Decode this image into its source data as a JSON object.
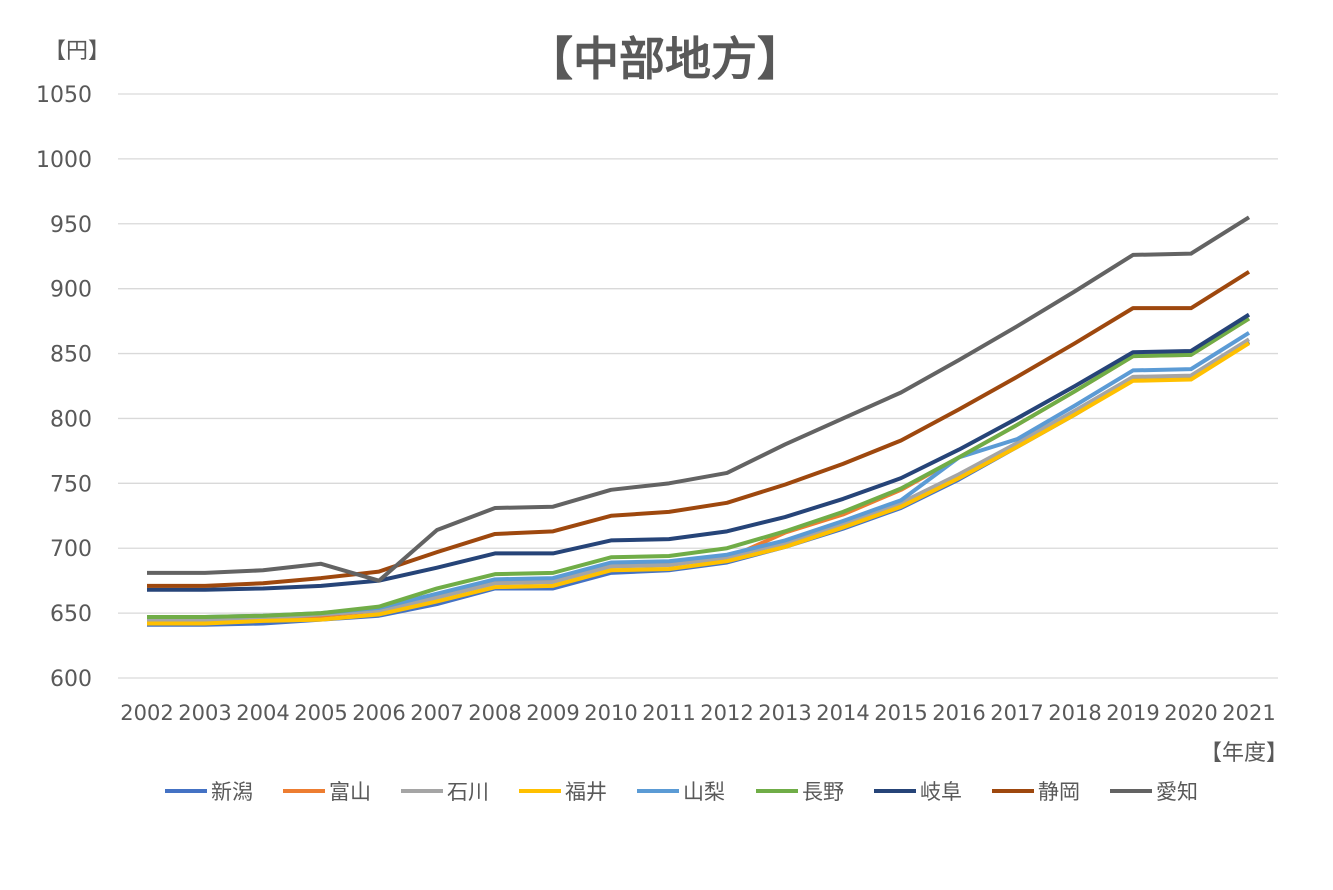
{
  "chart_data": {
    "type": "line",
    "title": "【中部地方】",
    "ylabel": "【円】",
    "xlabel": "【年度】",
    "ylim": [
      600,
      1050
    ],
    "yticks": [
      600,
      650,
      700,
      750,
      800,
      850,
      900,
      950,
      1000,
      1050
    ],
    "grid": true,
    "legend": "bottom",
    "categories": [
      "2002",
      "2003",
      "2004",
      "2005",
      "2006",
      "2007",
      "2008",
      "2009",
      "2010",
      "2011",
      "2012",
      "2013",
      "2014",
      "2015",
      "2016",
      "2017",
      "2018",
      "2019",
      "2020",
      "2021"
    ],
    "series": [
      {
        "name": "新潟",
        "color": "#4472C4",
        "values": [
          641,
          641,
          642,
          645,
          648,
          657,
          669,
          669,
          681,
          683,
          689,
          701,
          715,
          731,
          753,
          778,
          803,
          830,
          831,
          859
        ]
      },
      {
        "name": "富山",
        "color": "#ED7D31",
        "values": [
          644,
          644,
          645,
          648,
          652,
          662,
          675,
          675,
          686,
          688,
          692,
          712,
          726,
          745,
          770,
          795,
          821,
          848,
          849,
          877
        ]
      },
      {
        "name": "石川",
        "color": "#A5A5A5",
        "values": [
          645,
          645,
          646,
          649,
          652,
          662,
          673,
          674,
          686,
          687,
          693,
          704,
          718,
          735,
          757,
          781,
          806,
          832,
          833,
          861
        ]
      },
      {
        "name": "福井",
        "color": "#FFC000",
        "values": [
          642,
          642,
          644,
          645,
          649,
          659,
          670,
          671,
          683,
          684,
          690,
          701,
          716,
          732,
          754,
          778,
          803,
          829,
          830,
          858
        ]
      },
      {
        "name": "山梨",
        "color": "#5B9BD5",
        "values": [
          647,
          647,
          648,
          650,
          654,
          665,
          676,
          677,
          689,
          690,
          695,
          706,
          721,
          737,
          770,
          784,
          810,
          837,
          838,
          866
        ]
      },
      {
        "name": "長野",
        "color": "#70AD47",
        "values": [
          647,
          647,
          648,
          650,
          655,
          669,
          680,
          681,
          693,
          694,
          700,
          713,
          728,
          746,
          770,
          795,
          821,
          848,
          849,
          877
        ]
      },
      {
        "name": "岐阜",
        "color": "#264478",
        "values": [
          668,
          668,
          669,
          671,
          675,
          685,
          696,
          696,
          706,
          707,
          713,
          724,
          738,
          754,
          776,
          800,
          825,
          851,
          852,
          880
        ]
      },
      {
        "name": "静岡",
        "color": "#9E480E",
        "values": [
          671,
          671,
          673,
          677,
          682,
          697,
          711,
          713,
          725,
          728,
          735,
          749,
          765,
          783,
          807,
          832,
          858,
          885,
          885,
          913
        ]
      },
      {
        "name": "愛知",
        "color": "#636363",
        "values": [
          681,
          681,
          683,
          688,
          675,
          714,
          731,
          732,
          745,
          750,
          758,
          780,
          800,
          820,
          845,
          871,
          898,
          926,
          927,
          955
        ]
      }
    ]
  }
}
